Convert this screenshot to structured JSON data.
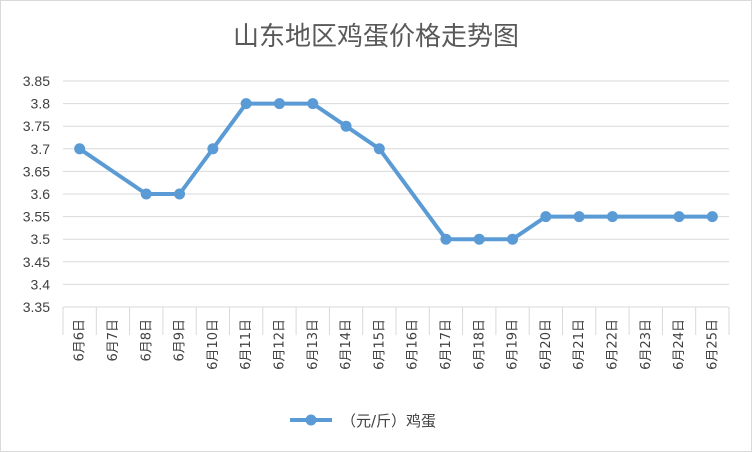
{
  "chart_data": {
    "type": "line",
    "title": "山东地区鸡蛋价格走势图",
    "xlabel": "",
    "ylabel": "",
    "categories": [
      "6月6日",
      "6月7日",
      "6月8日",
      "6月9日",
      "6月10日",
      "6月11日",
      "6月12日",
      "6月13日",
      "6月14日",
      "6月15日",
      "6月16日",
      "6月17日",
      "6月18日",
      "6月19日",
      "6月20日",
      "6月21日",
      "6月22日",
      "6月23日",
      "6月24日",
      "6月25日"
    ],
    "series": [
      {
        "name": "（元/斤）鸡蛋",
        "color": "#5b9bd5",
        "values": [
          3.7,
          null,
          3.6,
          3.6,
          3.7,
          3.8,
          3.8,
          3.8,
          3.75,
          3.7,
          null,
          3.5,
          3.5,
          3.5,
          3.55,
          3.55,
          3.55,
          null,
          3.55,
          3.55
        ]
      }
    ],
    "ylim": [
      3.35,
      3.85
    ],
    "yticks": [
      "3.35",
      "3.4",
      "3.45",
      "3.5",
      "3.55",
      "3.6",
      "3.65",
      "3.7",
      "3.75",
      "3.8",
      "3.85"
    ],
    "grid": true,
    "legend": "bottom"
  }
}
